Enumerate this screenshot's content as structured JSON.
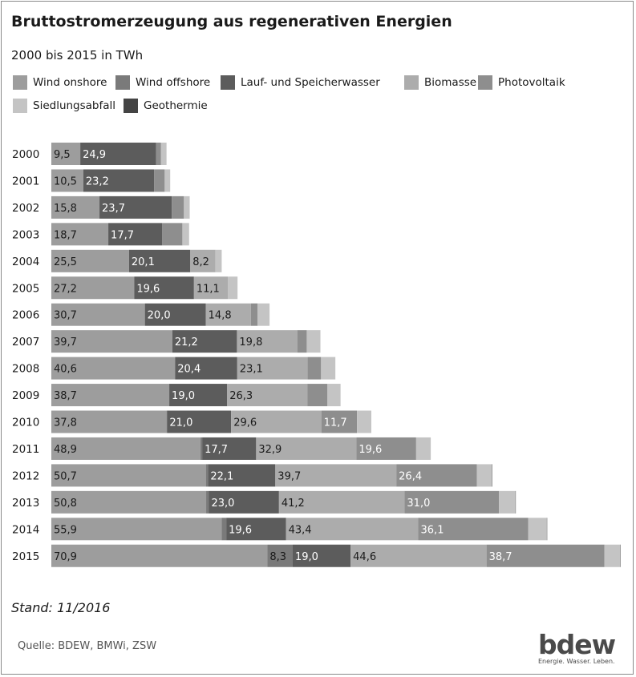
{
  "title": "Bruttostromerzeugung aus regenerativen Energien",
  "subtitle": "2000 bis 2015 in TWh",
  "stand": "Stand: 11/2016",
  "source": "Quelle: BDEW, BMWi, ZSW",
  "logo": {
    "name": "bdew",
    "tagline": "Energie. Wasser. Leben."
  },
  "chart_data": {
    "type": "bar",
    "orientation": "horizontal",
    "stacked": true,
    "categories": [
      "2000",
      "2001",
      "2002",
      "2003",
      "2004",
      "2005",
      "2006",
      "2007",
      "2008",
      "2009",
      "2010",
      "2011",
      "2012",
      "2013",
      "2014",
      "2015"
    ],
    "series": [
      {
        "name": "Wind onshore",
        "color": "#9d9d9d",
        "text_color": "#1a1a1a",
        "values": [
          9.5,
          10.5,
          15.8,
          18.7,
          25.5,
          27.2,
          30.7,
          39.7,
          40.6,
          38.7,
          37.8,
          48.9,
          50.7,
          50.8,
          55.9,
          70.9
        ],
        "labels": [
          "9,5",
          "10,5",
          "15,8",
          "18,7",
          "25,5",
          "27,2",
          "30,7",
          "39,7",
          "40,6",
          "38,7",
          "37,8",
          "48,9",
          "50,7",
          "50,8",
          "55,9",
          "70,9"
        ]
      },
      {
        "name": "Wind offshore",
        "color": "#7a7a7a",
        "text_color": "#1a1a1a",
        "values": [
          0,
          0,
          0,
          0,
          0,
          0,
          0,
          0,
          0,
          0,
          0.2,
          0.6,
          0.7,
          0.9,
          1.5,
          8.3
        ],
        "labels": [
          "",
          "",
          "",
          "",
          "",
          "",
          "",
          "",
          "",
          "",
          "",
          "",
          "",
          "",
          "",
          "8,3"
        ]
      },
      {
        "name": "Lauf- und Speicherwasser",
        "color": "#5c5c5c",
        "text_color": "#ffffff",
        "values": [
          24.9,
          23.2,
          23.7,
          17.7,
          20.1,
          19.6,
          20.0,
          21.2,
          20.4,
          19.0,
          21.0,
          17.7,
          22.1,
          23.0,
          19.6,
          19.0
        ],
        "labels": [
          "24,9",
          "23,2",
          "23,7",
          "17,7",
          "20,1",
          "19,6",
          "20,0",
          "21,2",
          "20,4",
          "19,0",
          "21,0",
          "17,7",
          "22,1",
          "23,0",
          "19,6",
          "19,0"
        ]
      },
      {
        "name": "Biomasse",
        "color": "#acacac",
        "text_color": "#1a1a1a",
        "values": [
          0,
          0,
          0,
          0,
          8.2,
          11.1,
          14.8,
          19.8,
          23.1,
          26.3,
          29.6,
          32.9,
          39.7,
          41.2,
          43.4,
          44.6
        ],
        "labels": [
          "",
          "",
          "",
          "",
          "8,2",
          "11,1",
          "14,8",
          "19,8",
          "23,1",
          "26,3",
          "29,6",
          "32,9",
          "39,7",
          "41,2",
          "43,4",
          "44,6"
        ]
      },
      {
        "name": "Photovoltaik",
        "color": "#8e8e8e",
        "text_color": "#ffffff",
        "values": [
          1.6,
          3.5,
          4.0,
          6.6,
          0,
          0,
          2.2,
          3.1,
          4.4,
          6.6,
          11.7,
          19.6,
          26.4,
          31.0,
          36.1,
          38.7
        ],
        "labels": [
          "",
          "",
          "",
          "",
          "",
          "",
          "",
          "",
          "",
          "",
          "11,7",
          "19,6",
          "26,4",
          "31,0",
          "36,1",
          "38,7"
        ]
      },
      {
        "name": "Siedlungsabfall",
        "color": "#c4c4c4",
        "text_color": "#1a1a1a",
        "values": [
          1.8,
          1.8,
          1.9,
          2.2,
          2.1,
          3.2,
          3.9,
          4.5,
          4.7,
          4.3,
          4.7,
          4.8,
          5.0,
          5.4,
          6.1,
          5.2
        ],
        "labels": [
          "",
          "",
          "",
          "",
          "",
          "",
          "",
          "",
          "",
          "",
          "",
          "",
          "",
          "",
          "",
          ""
        ]
      },
      {
        "name": "Geothermie",
        "color": "#444444",
        "text_color": "#ffffff",
        "values": [
          0,
          0,
          0,
          0,
          0,
          0,
          0,
          0,
          0,
          0,
          0,
          0,
          0.1,
          0.1,
          0.1,
          0.1
        ],
        "labels": [
          "",
          "",
          "",
          "",
          "",
          "",
          "",
          "",
          "",
          "",
          "",
          "",
          "",
          "",
          "",
          ""
        ]
      }
    ],
    "xlim": [
      0,
      188
    ],
    "grid": false,
    "legend_position": "top"
  }
}
